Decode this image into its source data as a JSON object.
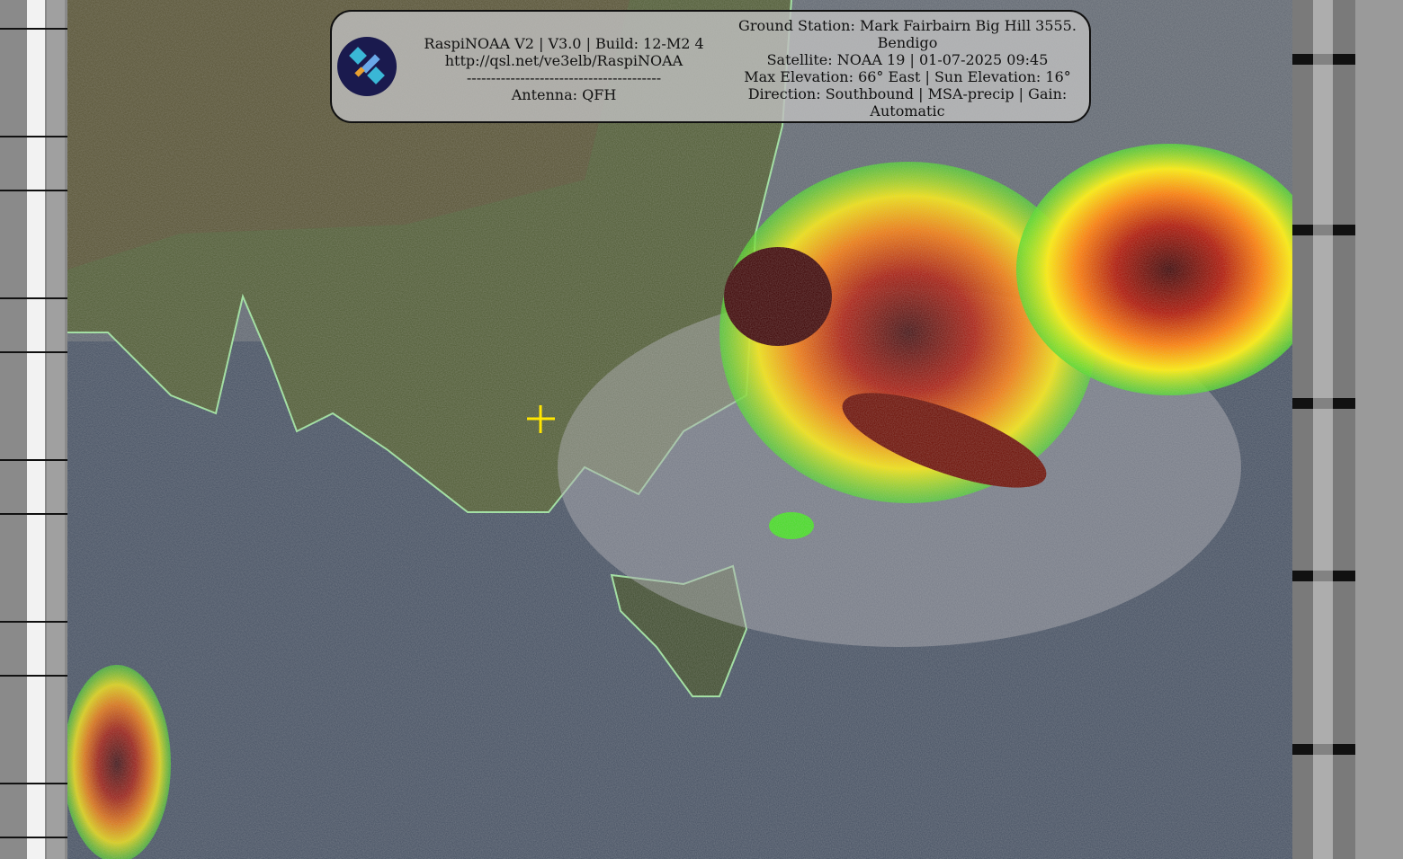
{
  "overlay": {
    "left_lines": [
      "RaspiNOAA V2 | V3.0 | Build: 12-M2 4",
      "http://qsl.net/ve3elb/RaspiNOAA",
      "----------------------------------------",
      "Antenna: QFH"
    ],
    "right_lines": [
      "Ground Station: Mark Fairbairn Big Hill 3555.",
      "Bendigo",
      "Satellite: NOAA 19 | 01-07-2025 09:45",
      "Max Elevation: 66° East | Sun Elevation: 16°",
      "Direction: Southbound | MSA-precip | Gain:",
      "Automatic"
    ],
    "logo_icon": "satellite-icon"
  },
  "image": {
    "enhancement": "MSA-precip",
    "colors": {
      "ocean": "#2e3d55",
      "land": "#4e5a32",
      "coastline": "#9be39b",
      "crosshair": "#ffe600",
      "precip_light": "#44dd22",
      "precip_mid": "#ffee00",
      "precip_heavy": "#dd2200",
      "precip_extreme": "#3a0000"
    }
  }
}
